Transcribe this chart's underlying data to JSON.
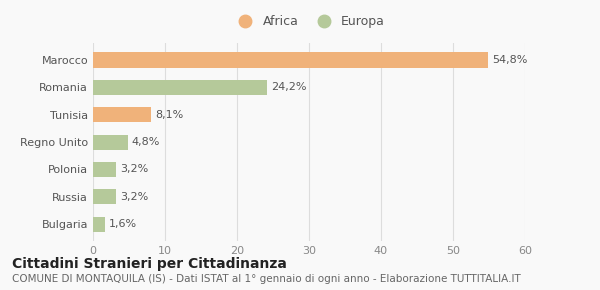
{
  "categories": [
    "Bulgaria",
    "Russia",
    "Polonia",
    "Regno Unito",
    "Tunisia",
    "Romania",
    "Marocco"
  ],
  "values": [
    1.6,
    3.2,
    3.2,
    4.8,
    8.1,
    24.2,
    54.8
  ],
  "labels": [
    "1,6%",
    "3,2%",
    "3,2%",
    "4,8%",
    "8,1%",
    "24,2%",
    "54,8%"
  ],
  "colors": [
    "#b5c99a",
    "#b5c99a",
    "#b5c99a",
    "#b5c99a",
    "#f0b27a",
    "#b5c99a",
    "#f0b27a"
  ],
  "legend_africa_color": "#f0b27a",
  "legend_europa_color": "#b5c99a",
  "xlim": [
    0,
    60
  ],
  "xticks": [
    0,
    10,
    20,
    30,
    40,
    50,
    60
  ],
  "title": "Cittadini Stranieri per Cittadinanza",
  "subtitle": "COMUNE DI MONTAQUILA (IS) - Dati ISTAT al 1° gennaio di ogni anno - Elaborazione TUTTITALIA.IT",
  "bg_color": "#f9f9f9",
  "grid_color": "#dddddd",
  "title_fontsize": 10,
  "subtitle_fontsize": 7.5,
  "label_fontsize": 8,
  "tick_fontsize": 8,
  "ytick_fontsize": 8
}
